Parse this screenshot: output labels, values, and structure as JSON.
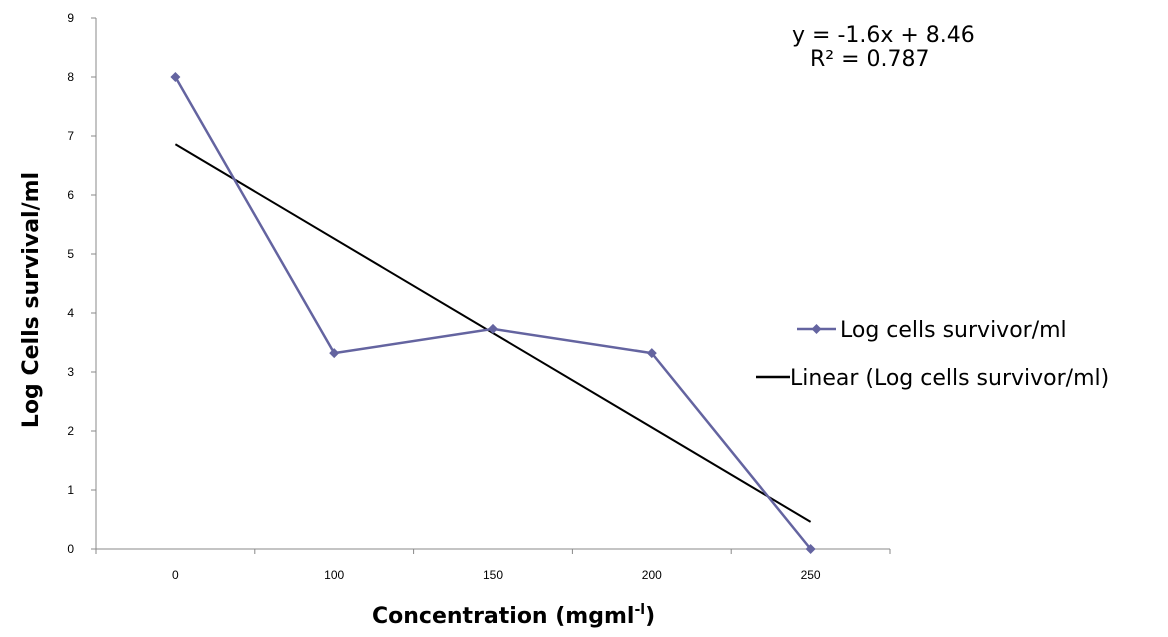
{
  "chart_data": {
    "type": "line",
    "categories": [
      "0",
      "100",
      "150",
      "200",
      "250"
    ],
    "series": [
      {
        "name": "Log cells survivor/ml",
        "values": [
          8.0,
          3.32,
          3.73,
          3.32,
          0.0
        ],
        "color": "#6464a0",
        "marker": "diamond"
      }
    ],
    "trendline": {
      "name": "Linear (Log cells survivor/ml)",
      "slope": -1.6,
      "intercept": 8.46,
      "color": "#000000",
      "equation": "y = -1.6x + 8.46",
      "r_squared": "R² = 0.787"
    },
    "xlabel": "Concentration (mgml",
    "xlabel_sup": "-l",
    "xlabel_end": ")",
    "ylabel": "Log Cells survival/ml",
    "ylim": [
      0,
      9
    ],
    "yticks": [
      "0",
      "1",
      "2",
      "3",
      "4",
      "5",
      "6",
      "7",
      "8",
      "9"
    ],
    "grid": false,
    "legend_position": "right"
  }
}
